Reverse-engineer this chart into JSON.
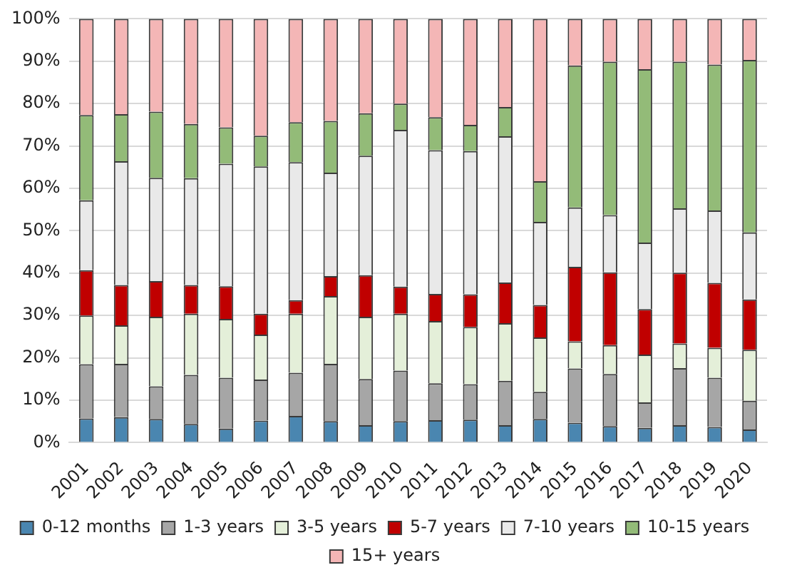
{
  "chart_data": {
    "type": "bar",
    "stacked": true,
    "categories": [
      "2001",
      "2002",
      "2003",
      "2004",
      "2005",
      "2006",
      "2007",
      "2008",
      "2009",
      "2010",
      "2011",
      "2012",
      "2013",
      "2014",
      "2015",
      "2016",
      "2017",
      "2018",
      "2019",
      "2020"
    ],
    "ylim": [
      0,
      100
    ],
    "yticks": [
      {
        "value": 0,
        "label": "0%"
      },
      {
        "value": 10,
        "label": "10%"
      },
      {
        "value": 20,
        "label": "20%"
      },
      {
        "value": 30,
        "label": "30%"
      },
      {
        "value": 40,
        "label": "40%"
      },
      {
        "value": 50,
        "label": "50%"
      },
      {
        "value": 60,
        "label": "60%"
      },
      {
        "value": 70,
        "label": "70%"
      },
      {
        "value": 80,
        "label": "80%"
      },
      {
        "value": 90,
        "label": "90%"
      },
      {
        "value": 100,
        "label": "100%"
      }
    ],
    "grid": "y",
    "legend": "bottom",
    "series": [
      {
        "name": "0-12 months",
        "color": "#4a86b0",
        "values": [
          5.7,
          6.0,
          5.6,
          4.4,
          3.3,
          5.2,
          6.3,
          5.1,
          4.1,
          5.1,
          5.3,
          5.4,
          4.1,
          5.6,
          4.7,
          3.9,
          3.5,
          4.1,
          3.7,
          3.1
        ]
      },
      {
        "name": "1-3 years",
        "color": "#a6a6a6",
        "values": [
          12.8,
          12.6,
          7.7,
          11.6,
          12.0,
          9.7,
          10.2,
          13.5,
          10.9,
          11.9,
          8.7,
          8.4,
          10.5,
          6.4,
          12.8,
          12.3,
          6.0,
          13.5,
          11.6,
          6.8
        ]
      },
      {
        "name": "3-5 years",
        "color": "#e4efd9",
        "values": [
          11.5,
          9.1,
          16.4,
          14.4,
          13.9,
          10.6,
          13.9,
          16.0,
          14.7,
          13.4,
          14.7,
          13.5,
          13.6,
          12.8,
          6.4,
          6.8,
          11.3,
          5.8,
          7.1,
          12.0
        ]
      },
      {
        "name": "5-7 years",
        "color": "#c00000",
        "values": [
          10.7,
          9.5,
          8.4,
          6.8,
          7.7,
          4.9,
          3.2,
          4.7,
          9.8,
          6.4,
          6.4,
          7.7,
          9.6,
          7.7,
          17.6,
          17.2,
          10.7,
          16.7,
          15.3,
          11.9
        ]
      },
      {
        "name": "7-10 years",
        "color": "#e9e9e9",
        "values": [
          16.5,
          29.2,
          24.4,
          25.2,
          28.9,
          34.8,
          32.6,
          24.4,
          28.2,
          37.0,
          33.9,
          33.8,
          34.5,
          19.6,
          14.0,
          13.5,
          15.7,
          15.2,
          17.1,
          15.8
        ]
      },
      {
        "name": "10-15 years",
        "color": "#93bb78",
        "values": [
          20.1,
          11.1,
          15.6,
          12.8,
          8.6,
          7.2,
          9.4,
          12.2,
          10.0,
          6.2,
          7.8,
          6.2,
          6.9,
          9.6,
          33.5,
          36.2,
          40.9,
          34.6,
          34.4,
          40.7
        ]
      },
      {
        "name": "15+ years",
        "color": "#f4b6b6",
        "values": [
          22.7,
          22.5,
          21.9,
          24.8,
          25.6,
          27.6,
          24.4,
          24.1,
          22.3,
          20.0,
          23.2,
          25.0,
          20.8,
          38.3,
          11.0,
          10.1,
          11.9,
          10.1,
          10.8,
          9.7
        ]
      }
    ]
  }
}
